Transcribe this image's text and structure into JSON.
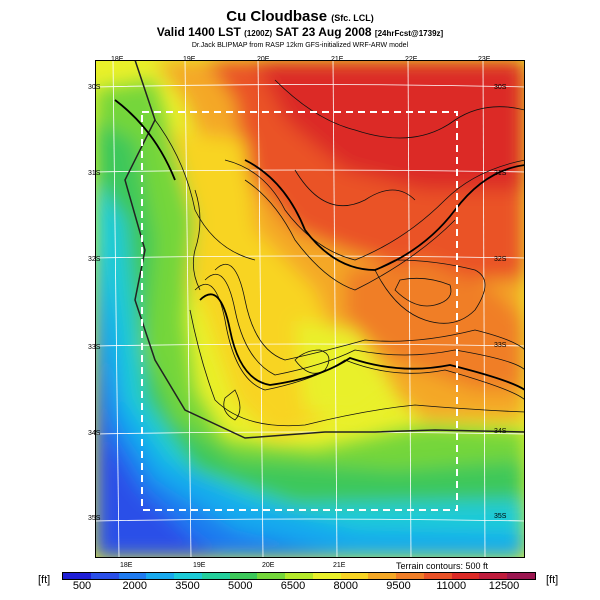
{
  "title": {
    "main": "Cu Cloudbase",
    "main_suffix": "(Sfc. LCL)",
    "valid": "Valid 1400 LST",
    "valid_code": "(1200Z)",
    "date": "SAT 23 Aug 2008",
    "forecast": "[24hrFcst@1739z]",
    "credit": "Dr.Jack BLIPMAP from RASP 12km GFS-initialized WRF-ARW model"
  },
  "map": {
    "longitude_labels_top": [
      "18E",
      "19E",
      "20E",
      "21E",
      "22E",
      "23E"
    ],
    "longitude_labels_bottom": [
      "18E",
      "19E",
      "20E",
      "21E"
    ],
    "latitude_labels_left": [
      "30S",
      "31S",
      "32S",
      "33S",
      "34S",
      "35S"
    ],
    "latitude_labels_right": [
      "30S",
      "31S",
      "32S",
      "33S",
      "34S",
      "35S"
    ],
    "terrain_note": "Terrain contours: 500 ft"
  },
  "colorbar": {
    "unit_left": "[ft]",
    "unit_right": "[ft]",
    "tick_labels": [
      "500",
      "2000",
      "3500",
      "5000",
      "6500",
      "8000",
      "9500",
      "11000",
      "12500"
    ],
    "colors": [
      "#1f1fd6",
      "#2a4fe8",
      "#1f7bf0",
      "#18a9ee",
      "#1ccbd8",
      "#24cf9c",
      "#3cc85a",
      "#74d63a",
      "#b4e82a",
      "#e9f02a",
      "#f8d424",
      "#f4a826",
      "#f07e28",
      "#ea5228",
      "#dc2a26",
      "#bf1c3c",
      "#9b1650"
    ]
  }
}
